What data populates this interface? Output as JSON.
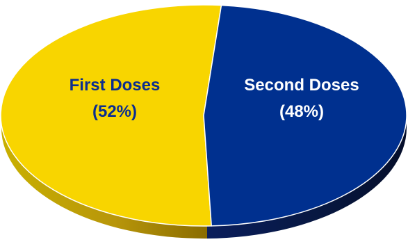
{
  "chart_data": {
    "type": "pie",
    "title": "",
    "slices": [
      {
        "label": "First Doses",
        "value": 52,
        "display": "(52%)",
        "color": "#f8d500",
        "text_color": "#0b2d8f"
      },
      {
        "label": "Second Doses",
        "value": 48,
        "display": "(48%)",
        "color": "#00308f",
        "text_color": "#ffffff"
      }
    ],
    "style": "3d"
  }
}
